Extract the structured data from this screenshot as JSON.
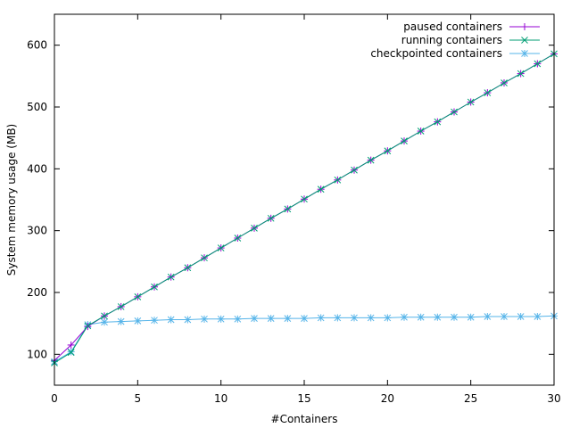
{
  "chart_data": {
    "type": "line",
    "xlabel": "#Containers",
    "ylabel": "System memory usage (MB)",
    "xlim": [
      0,
      30
    ],
    "ylim": [
      50,
      650
    ],
    "xticks": [
      0,
      5,
      10,
      15,
      20,
      25,
      30
    ],
    "yticks": [
      100,
      200,
      300,
      400,
      500,
      600
    ],
    "grid": false,
    "legend_position": "top-right",
    "x": [
      0,
      1,
      2,
      3,
      4,
      5,
      6,
      7,
      8,
      9,
      10,
      11,
      12,
      13,
      14,
      15,
      16,
      17,
      18,
      19,
      20,
      21,
      22,
      23,
      24,
      25,
      26,
      27,
      28,
      29,
      30
    ],
    "series": [
      {
        "name": "paused containers",
        "marker": "plus",
        "color": "#9400d3",
        "values": [
          90,
          115,
          145,
          162,
          177,
          193,
          209,
          225,
          240,
          256,
          272,
          288,
          304,
          320,
          335,
          351,
          367,
          382,
          398,
          414,
          429,
          445,
          461,
          476,
          492,
          508,
          523,
          539,
          554,
          570,
          586
        ]
      },
      {
        "name": "running containers",
        "marker": "cross",
        "color": "#009e73",
        "values": [
          86,
          103,
          146,
          162,
          177,
          193,
          209,
          225,
          240,
          256,
          272,
          288,
          304,
          320,
          335,
          351,
          367,
          382,
          398,
          414,
          429,
          445,
          461,
          476,
          492,
          508,
          523,
          539,
          554,
          570,
          586
        ]
      },
      {
        "name": "checkpointed containers",
        "marker": "star",
        "color": "#56b4e9",
        "values": [
          88,
          104,
          148,
          152,
          153,
          154,
          155,
          156,
          156,
          157,
          157,
          157,
          158,
          158,
          158,
          158,
          159,
          159,
          159,
          159,
          159,
          160,
          160,
          160,
          160,
          160,
          161,
          161,
          161,
          161,
          162
        ]
      }
    ]
  }
}
